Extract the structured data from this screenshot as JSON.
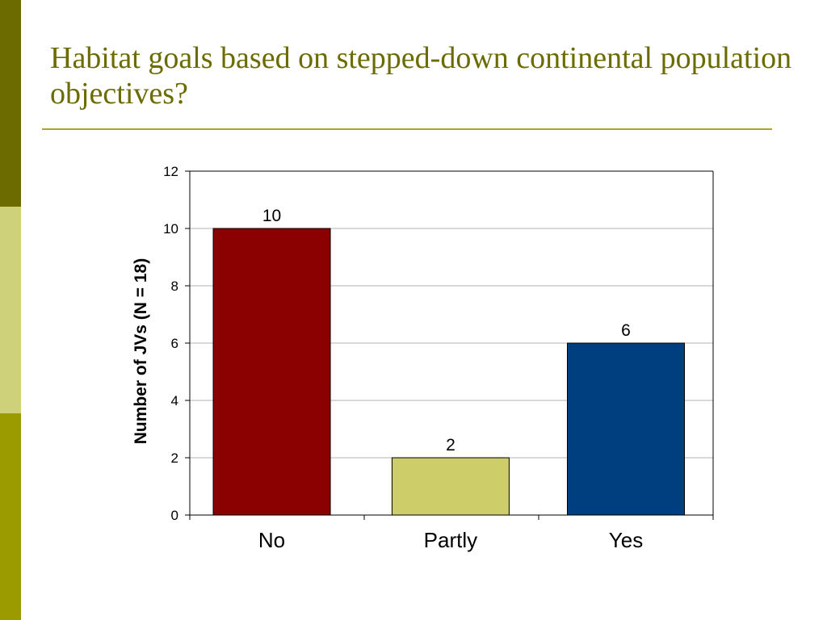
{
  "slide": {
    "title": "Habitat goals based on stepped-down continental population objectives?"
  },
  "colors": {
    "title": "#6b6b00",
    "sidebar_top": "#6b6b00",
    "sidebar_mid": "#cfd07a",
    "sidebar_bottom": "#9b9b00",
    "title_rule": "#a6a62c",
    "gridline": "#b3b3b3",
    "axis": "#000000"
  },
  "chart_data": {
    "type": "bar",
    "title": "",
    "xlabel": "",
    "ylabel": "Number of JVs (N = 18)",
    "categories": [
      "No",
      "Partly",
      "Yes"
    ],
    "values": [
      10,
      2,
      6
    ],
    "bar_colors": [
      "#8b0000",
      "#cdcd6a",
      "#003f7f"
    ],
    "data_labels": [
      "10",
      "2",
      "6"
    ],
    "ylim": [
      0,
      12
    ],
    "yticks": [
      0,
      2,
      4,
      6,
      8,
      10,
      12
    ],
    "grid": true,
    "legend": "none"
  }
}
